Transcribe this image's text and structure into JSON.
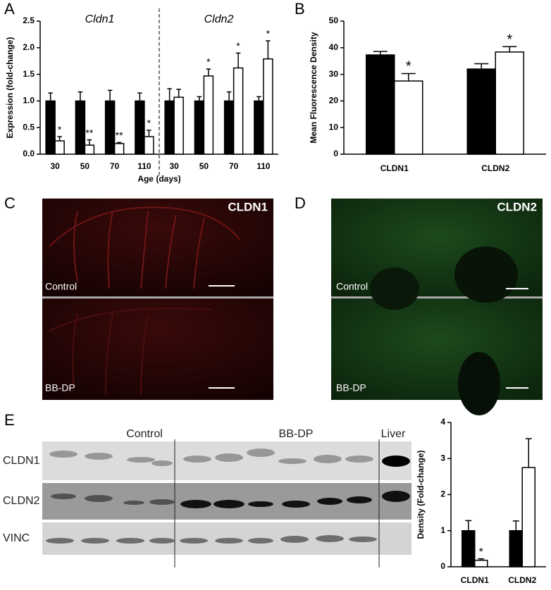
{
  "panels": {
    "a": "A",
    "b": "B",
    "c": "C",
    "d": "D",
    "e": "E"
  },
  "images": {
    "c": {
      "title": "CLDN1",
      "top": "Control",
      "bottom": "BB-DP"
    },
    "d": {
      "title": "CLDN2",
      "top": "Control",
      "bottom": "BB-DP"
    }
  },
  "blot": {
    "groups": [
      "Control",
      "BB-DP",
      "Liver"
    ],
    "rows": [
      "CLDN1",
      "CLDN2",
      "VINC"
    ]
  },
  "chart_data": [
    {
      "type": "bar",
      "ylabel": "Expression (fold-change)",
      "xlabel": "Age (days)",
      "group_labels": [
        "Cldn1",
        "Cldn2"
      ],
      "categories": [
        "30",
        "50",
        "70",
        "110",
        "30",
        "50",
        "70",
        "110"
      ],
      "series": [
        {
          "color": "#000000",
          "values": [
            1.0,
            1.0,
            1.0,
            1.0,
            1.0,
            1.0,
            1.0,
            1.0
          ],
          "errors": [
            0.15,
            0.17,
            0.2,
            0.15,
            0.23,
            0.08,
            0.17,
            0.08
          ]
        },
        {
          "color": "#ffffff",
          "values": [
            0.25,
            0.17,
            0.2,
            0.33,
            1.07,
            1.47,
            1.62,
            1.79
          ],
          "errors": [
            0.08,
            0.1,
            0.02,
            0.12,
            0.15,
            0.13,
            0.28,
            0.34
          ],
          "annotations": [
            "*",
            "**",
            "**",
            "*",
            null,
            "*",
            "*",
            "*"
          ]
        }
      ],
      "ylim": [
        0,
        2.5
      ],
      "yticks": [
        {
          "value": 0,
          "label": "0.0"
        },
        0.5,
        {
          "value": 1,
          "label": "1.0"
        },
        1.5,
        {
          "value": 2,
          "label": "2.0"
        },
        2.5
      ]
    },
    {
      "type": "bar",
      "ylabel": "Mean Fluorescence Density",
      "categories": [
        "CLDN1",
        "CLDN2"
      ],
      "series": [
        {
          "color": "#000000",
          "values": [
            37.3,
            32
          ],
          "errors": [
            1.3,
            2
          ]
        },
        {
          "color": "#ffffff",
          "values": [
            27.5,
            38.4
          ],
          "errors": [
            2.8,
            2
          ],
          "annotations": [
            "*",
            "*"
          ]
        }
      ],
      "ylim": [
        0,
        50
      ],
      "yticks": [
        0,
        10,
        20,
        30,
        40,
        50
      ]
    },
    {
      "type": "bar",
      "ylabel": "Density (Fold-change)",
      "categories": [
        "CLDN1",
        "CLDN2"
      ],
      "series": [
        {
          "color": "#000000",
          "values": [
            1.0,
            1.0
          ],
          "errors": [
            0.28,
            0.27
          ]
        },
        {
          "color": "#ffffff",
          "values": [
            0.18,
            2.75
          ],
          "errors": [
            0.04,
            0.8
          ],
          "annotations": [
            "*",
            null
          ]
        }
      ],
      "ylim": [
        0,
        4
      ],
      "yticks": [
        0,
        1,
        2,
        3,
        4
      ]
    }
  ]
}
